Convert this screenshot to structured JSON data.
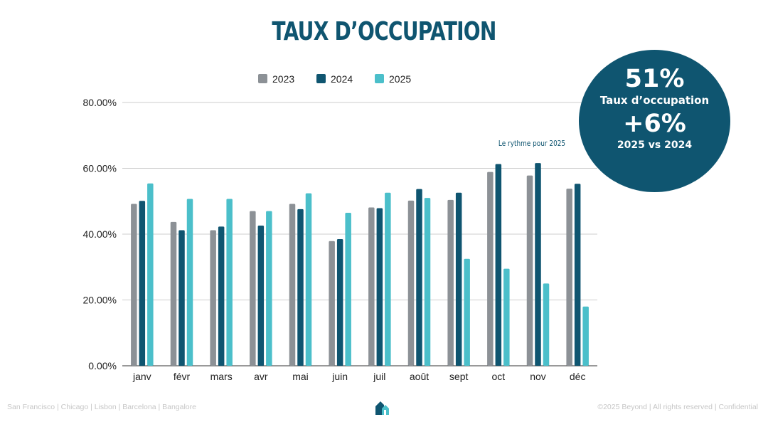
{
  "title": "TAUX D’OCCUPATION",
  "kpi": {
    "value": "51%",
    "label": "Taux d’occupation",
    "delta": "+6%",
    "delta_label": "2025 vs 2024"
  },
  "footer": {
    "left": "San Francisco | Chicago | Lisbon | Barcelona | Bangalore",
    "right": "©2025 Beyond | All rights reserved | Confidential"
  },
  "colors": {
    "2023": "#8c9196",
    "2024": "#0f5570",
    "2025": "#4bbfca",
    "title": "#0f5570"
  },
  "chart_data": {
    "type": "bar",
    "categories": [
      "janv",
      "févr",
      "mars",
      "avr",
      "mai",
      "juin",
      "juil",
      "août",
      "sept",
      "oct",
      "nov",
      "déc"
    ],
    "series": [
      {
        "name": "2023",
        "values": [
          49.2,
          43.7,
          41.2,
          47.0,
          49.2,
          37.9,
          48.1,
          50.2,
          50.4,
          58.9,
          57.8,
          53.8
        ]
      },
      {
        "name": "2024",
        "values": [
          50.1,
          41.2,
          42.3,
          42.6,
          47.6,
          38.5,
          47.9,
          53.7,
          52.6,
          61.3,
          61.6,
          55.3
        ]
      },
      {
        "name": "2025",
        "values": [
          55.4,
          50.7,
          50.7,
          47.0,
          52.4,
          46.5,
          52.6,
          51.0,
          32.5,
          29.5,
          25.0,
          18.0
        ]
      }
    ],
    "y_ticks": [
      "0.00%",
      "20.00%",
      "40.00%",
      "60.00%",
      "80.00%"
    ],
    "ylim": [
      0,
      80
    ],
    "legend": "top-center",
    "grid": true,
    "annotation": "Le rythme pour 2025"
  }
}
